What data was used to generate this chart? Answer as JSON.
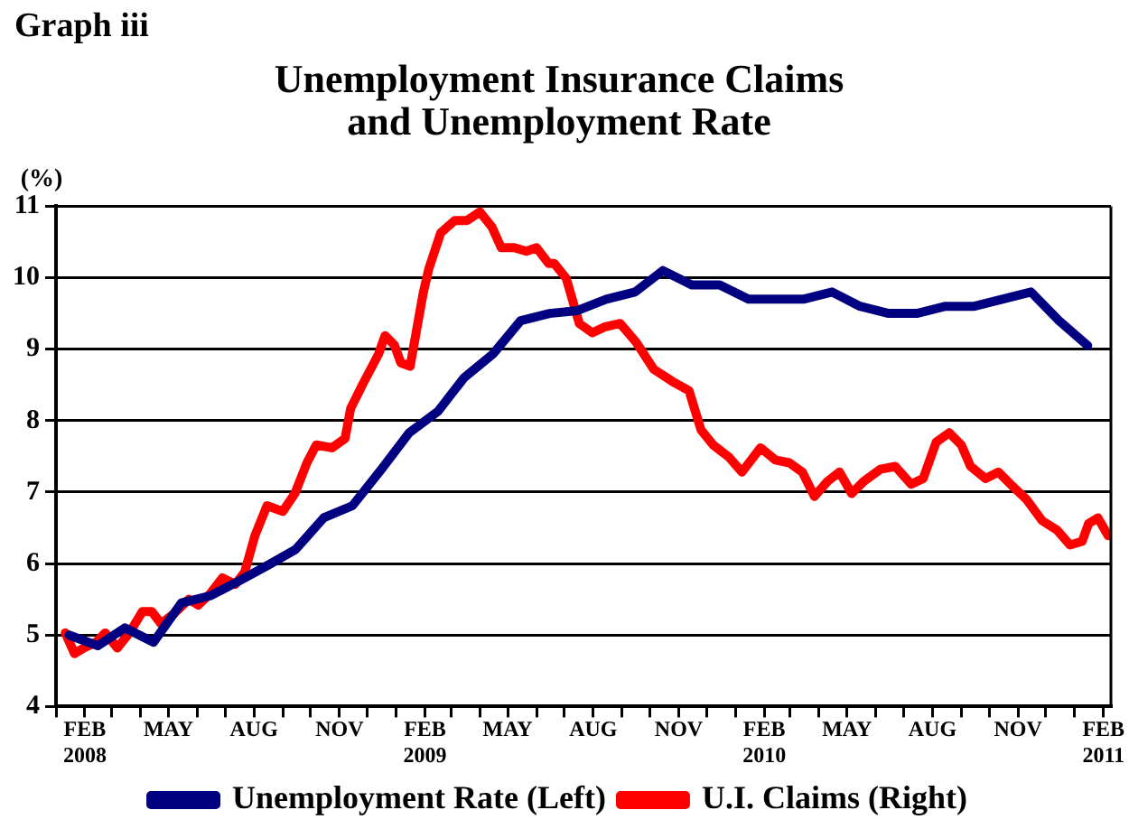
{
  "chart_data": {
    "type": "line",
    "title": "Unemployment Insurance Claims\nand Unemployment Rate",
    "ylabel": "(%)",
    "annotations": [
      "Graph iii"
    ],
    "xlim": [
      "2008-01-01",
      "2011-02-09"
    ],
    "xticks": [
      {
        "value": "2008-01-01",
        "label": null
      },
      {
        "value": "2008-02-01",
        "label": "FEB\n2008"
      },
      {
        "value": "2008-03-01",
        "label": null
      },
      {
        "value": "2008-04-01",
        "label": null
      },
      {
        "value": "2008-05-01",
        "label": "MAY"
      },
      {
        "value": "2008-06-01",
        "label": null
      },
      {
        "value": "2008-07-01",
        "label": null
      },
      {
        "value": "2008-08-01",
        "label": "AUG"
      },
      {
        "value": "2008-09-01",
        "label": null
      },
      {
        "value": "2008-10-01",
        "label": null
      },
      {
        "value": "2008-11-01",
        "label": "NOV"
      },
      {
        "value": "2008-12-01",
        "label": null
      },
      {
        "value": "2009-01-01",
        "label": null
      },
      {
        "value": "2009-02-01",
        "label": "FEB\n2009"
      },
      {
        "value": "2009-03-01",
        "label": null
      },
      {
        "value": "2009-04-01",
        "label": null
      },
      {
        "value": "2009-05-01",
        "label": "MAY"
      },
      {
        "value": "2009-06-01",
        "label": null
      },
      {
        "value": "2009-07-01",
        "label": null
      },
      {
        "value": "2009-08-01",
        "label": "AUG"
      },
      {
        "value": "2009-09-01",
        "label": null
      },
      {
        "value": "2009-10-01",
        "label": null
      },
      {
        "value": "2009-11-01",
        "label": "NOV"
      },
      {
        "value": "2009-12-01",
        "label": null
      },
      {
        "value": "2010-01-01",
        "label": null
      },
      {
        "value": "2010-02-01",
        "label": "FEB\n2010"
      },
      {
        "value": "2010-03-01",
        "label": null
      },
      {
        "value": "2010-04-01",
        "label": null
      },
      {
        "value": "2010-05-01",
        "label": "MAY"
      },
      {
        "value": "2010-06-01",
        "label": null
      },
      {
        "value": "2010-07-01",
        "label": null
      },
      {
        "value": "2010-08-01",
        "label": "AUG"
      },
      {
        "value": "2010-09-01",
        "label": null
      },
      {
        "value": "2010-10-01",
        "label": null
      },
      {
        "value": "2010-11-01",
        "label": "NOV"
      },
      {
        "value": "2010-12-01",
        "label": null
      },
      {
        "value": "2011-01-01",
        "label": null
      },
      {
        "value": "2011-02-01",
        "label": "FEB\n2011"
      }
    ],
    "ylim": [
      4,
      11
    ],
    "yticks": [
      4,
      5,
      6,
      7,
      8,
      9,
      10,
      11
    ],
    "grid": "y",
    "legend": "bottom",
    "line_style": "solid",
    "marker": "none",
    "series": [
      {
        "name": "Unemployment Rate (Left)",
        "color": "#000080",
        "x": [
          "2008-01-15",
          "2008-02-15",
          "2008-03-15",
          "2008-04-15",
          "2008-05-15",
          "2008-06-15",
          "2008-07-15",
          "2008-08-15",
          "2008-09-15",
          "2008-10-15",
          "2008-11-15",
          "2008-12-15",
          "2009-01-15",
          "2009-02-15",
          "2009-03-15",
          "2009-04-15",
          "2009-05-15",
          "2009-06-15",
          "2009-07-15",
          "2009-08-15",
          "2009-09-15",
          "2009-10-15",
          "2009-11-15",
          "2009-12-15",
          "2010-01-15",
          "2010-02-15",
          "2010-03-15",
          "2010-04-15",
          "2010-05-15",
          "2010-06-15",
          "2010-07-15",
          "2010-08-15",
          "2010-09-15",
          "2010-10-15",
          "2010-11-15",
          "2010-12-15",
          "2011-01-15"
        ],
        "values": [
          5.0,
          4.85,
          5.1,
          4.9,
          5.45,
          5.55,
          5.75,
          5.97,
          6.2,
          6.64,
          6.81,
          7.3,
          7.83,
          8.13,
          8.6,
          8.93,
          9.4,
          9.5,
          9.54,
          9.7,
          9.8,
          10.1,
          9.9,
          9.9,
          9.7,
          9.7,
          9.7,
          9.8,
          9.6,
          9.5,
          9.5,
          9.6,
          9.6,
          9.7,
          9.8,
          9.4,
          9.05
        ]
      },
      {
        "name": "U.I. Claims (Right)",
        "color": "#ff0000",
        "x": [
          "2008-01-11",
          "2008-01-21",
          "2008-01-31",
          "2008-02-13",
          "2008-02-23",
          "2008-03-07",
          "2008-03-20",
          "2008-04-03",
          "2008-04-13",
          "2008-04-23",
          "2008-05-06",
          "2008-05-23",
          "2008-06-02",
          "2008-06-15",
          "2008-06-28",
          "2008-07-12",
          "2008-07-22",
          "2008-08-02",
          "2008-08-15",
          "2008-09-01",
          "2008-09-14",
          "2008-09-27",
          "2008-10-07",
          "2008-10-24",
          "2008-11-07",
          "2008-11-13",
          "2008-11-26",
          "2008-12-13",
          "2008-12-20",
          "2008-12-30",
          "2009-01-06",
          "2009-01-16",
          "2009-01-30",
          "2009-02-05",
          "2009-02-18",
          "2009-03-05",
          "2009-03-18",
          "2009-04-01",
          "2009-04-14",
          "2009-04-24",
          "2009-05-08",
          "2009-05-21",
          "2009-06-01",
          "2009-06-14",
          "2009-06-20",
          "2009-07-03",
          "2009-07-17",
          "2009-07-31",
          "2009-08-13",
          "2009-08-30",
          "2009-09-16",
          "2009-10-05",
          "2009-10-25",
          "2009-11-12",
          "2009-11-25",
          "2009-12-08",
          "2009-12-25",
          "2010-01-08",
          "2010-01-28",
          "2010-02-13",
          "2010-02-28",
          "2010-03-14",
          "2010-03-27",
          "2010-04-10",
          "2010-04-23",
          "2010-05-06",
          "2010-05-19",
          "2010-06-06",
          "2010-06-22",
          "2010-07-09",
          "2010-07-22",
          "2010-08-05",
          "2010-08-19",
          "2010-09-01",
          "2010-09-11",
          "2010-09-27",
          "2010-10-11",
          "2010-10-24",
          "2010-11-10",
          "2010-11-27",
          "2010-12-13",
          "2010-12-27",
          "2011-01-09",
          "2011-01-16",
          "2011-01-26",
          "2011-02-06"
        ],
        "values": [
          5.03,
          4.74,
          4.82,
          4.9,
          5.03,
          4.82,
          5.03,
          5.33,
          5.33,
          5.16,
          5.29,
          5.5,
          5.42,
          5.58,
          5.8,
          5.71,
          5.88,
          6.39,
          6.81,
          6.73,
          6.98,
          7.41,
          7.66,
          7.62,
          7.75,
          8.17,
          8.51,
          8.93,
          9.19,
          9.06,
          8.81,
          8.76,
          9.78,
          10.12,
          10.63,
          10.8,
          10.8,
          10.92,
          10.71,
          10.42,
          10.42,
          10.37,
          10.42,
          10.2,
          10.2,
          9.99,
          9.36,
          9.23,
          9.31,
          9.36,
          9.1,
          8.72,
          8.55,
          8.42,
          7.87,
          7.66,
          7.49,
          7.28,
          7.62,
          7.45,
          7.41,
          7.28,
          6.94,
          7.15,
          7.28,
          6.98,
          7.15,
          7.32,
          7.36,
          7.11,
          7.19,
          7.7,
          7.83,
          7.66,
          7.36,
          7.19,
          7.28,
          7.11,
          6.9,
          6.6,
          6.47,
          6.26,
          6.31,
          6.56,
          6.64,
          6.39
        ]
      }
    ]
  }
}
